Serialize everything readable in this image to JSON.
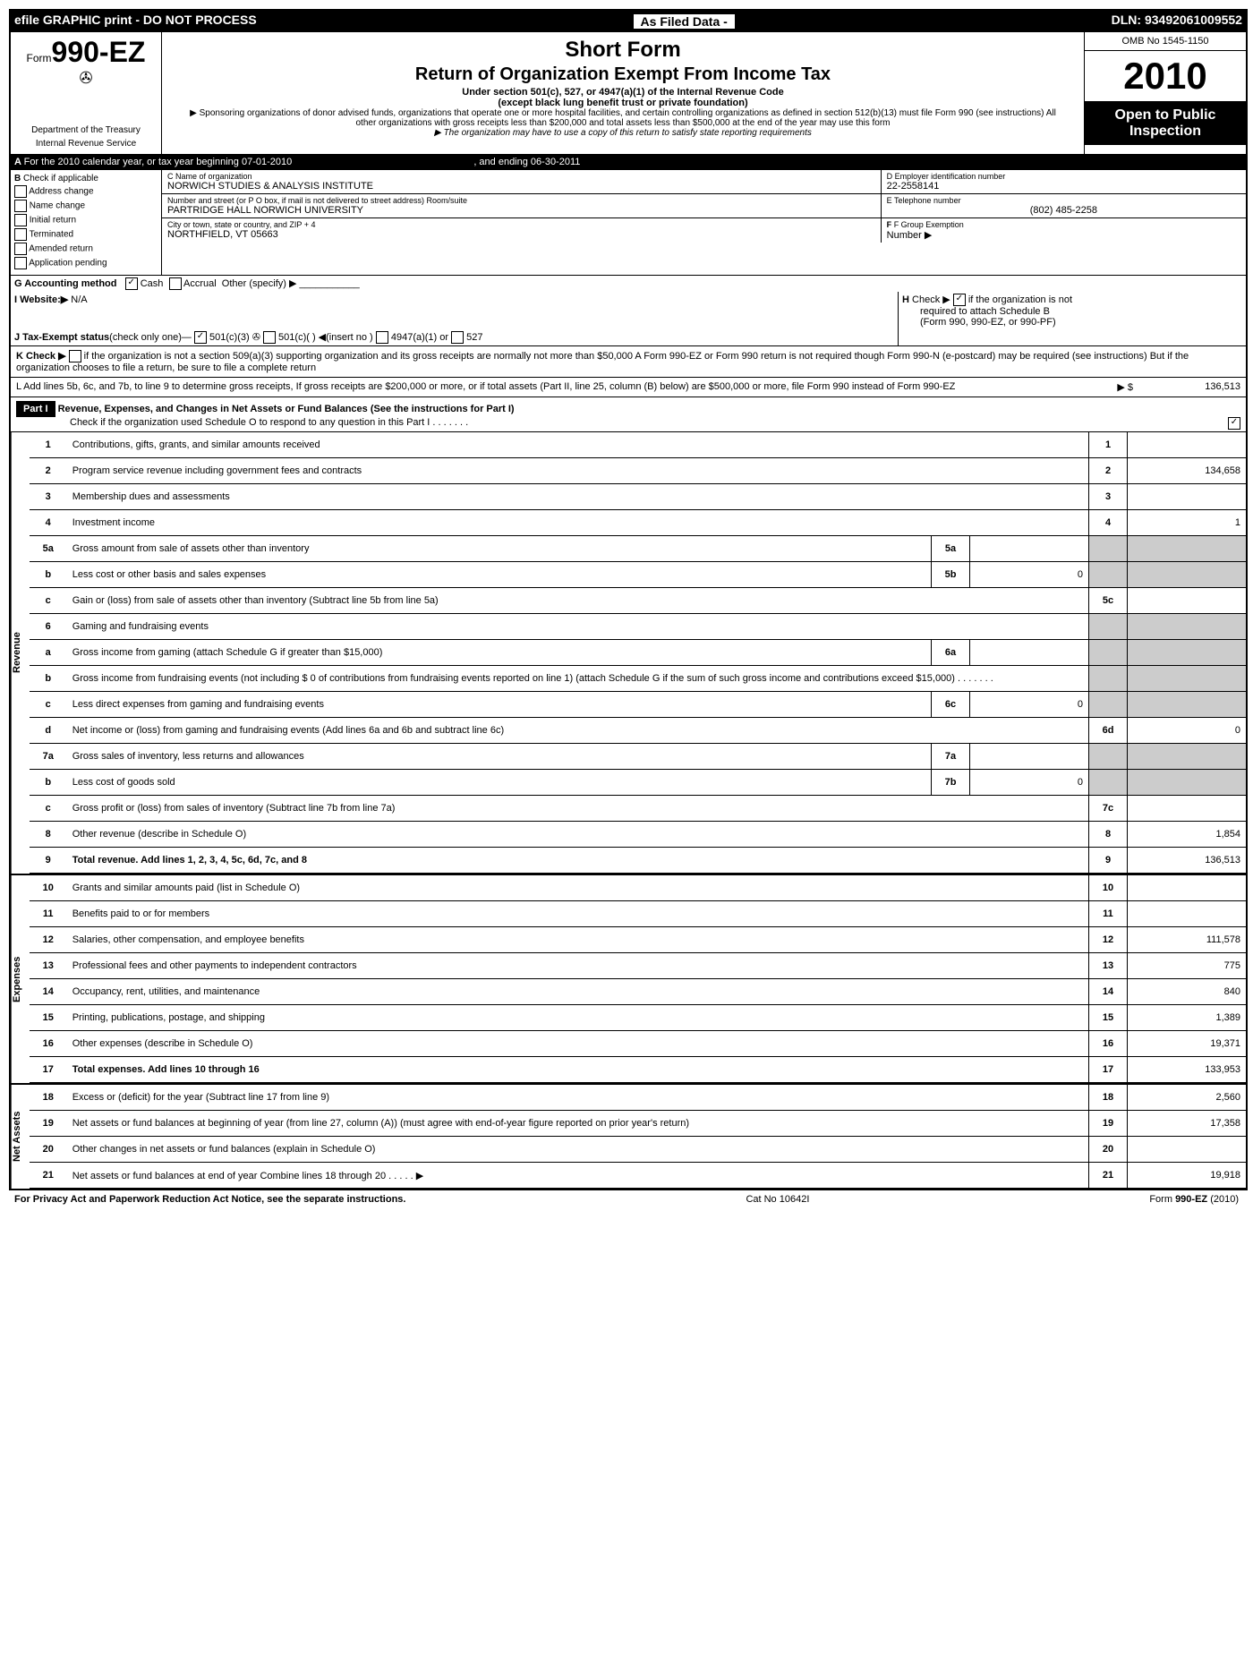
{
  "header": {
    "left": "efile GRAPHIC print - DO NOT PROCESS",
    "center": "As Filed Data -",
    "dln": "DLN: 93492061009552"
  },
  "title": {
    "form_prefix": "Form",
    "form_no": "990-EZ",
    "short_form": "Short Form",
    "main": "Return of Organization Exempt From Income Tax",
    "sub1": "Under section 501(c), 527, or 4947(a)(1) of the Internal Revenue Code",
    "sub2": "(except black lung benefit trust or private foundation)",
    "sponsor": "▶ Sponsoring organizations of donor advised funds, organizations that operate one or more hospital facilities, and certain controlling organizations as defined in section 512(b)(13) must file Form 990 (see instructions) All other organizations with gross receipts less than $200,000 and total assets less than $500,000 at the end of the year may use this form",
    "state_copy": "▶ The organization may have to use a copy of this return to satisfy state reporting requirements",
    "omb": "OMB No 1545-1150",
    "year": "2010",
    "open": "Open to Public",
    "inspection": "Inspection",
    "dept": "Department of the Treasury",
    "irs": "Internal Revenue Service"
  },
  "sectionA": {
    "text": "For the 2010 calendar year, or tax year beginning 07-01-2010",
    "ending": ", and ending 06-30-2011"
  },
  "sectionB": {
    "label": "B",
    "check_label": "Check if applicable",
    "options": [
      "Address change",
      "Name change",
      "Initial return",
      "Terminated",
      "Amended return",
      "Application pending"
    ]
  },
  "sectionC": {
    "label": "C Name of organization",
    "name": "NORWICH STUDIES & ANALYSIS INSTITUTE",
    "addr_label": "Number and street (or P O box, if mail is not delivered to street address) Room/suite",
    "addr": "PARTRIDGE HALL NORWICH UNIVERSITY",
    "city_label": "City or town, state or country, and ZIP + 4",
    "city": "NORTHFIELD, VT 05663"
  },
  "sectionD": {
    "label": "D Employer identification number",
    "ein": "22-2558141"
  },
  "sectionE": {
    "label": "E Telephone number",
    "phone": "(802) 485-2258"
  },
  "sectionF": {
    "label": "F Group Exemption",
    "sub": "Number ▶"
  },
  "sectionG": {
    "label": "G Accounting method",
    "cash": "Cash",
    "accrual": "Accrual",
    "other": "Other (specify) ▶"
  },
  "sectionI": {
    "label": "I Website:▶",
    "val": "N/A"
  },
  "sectionH": {
    "text": "Check ▶",
    "not": "if the organization is not",
    "sub": "required to attach Schedule B",
    "sub2": "(Form 990, 990-EZ, or 990-PF)"
  },
  "sectionJ": {
    "label": "J Tax-Exempt status",
    "text": "(check only one)—",
    "opt1": "501(c)(3)",
    "opt2": "501(c)( )",
    "insert": "◀(insert no )",
    "opt3": "4947(a)(1) or",
    "opt4": "527"
  },
  "sectionK": {
    "text": "K Check ▶",
    "body": "if the organization is not a section 509(a)(3) supporting organization and its gross receipts are normally not more than $50,000  A Form 990-EZ or Form 990 return is not required though Form 990-N (e-postcard) may be required (see instructions) But if the organization chooses to file a return, be sure to file a complete return"
  },
  "sectionL": {
    "text": "L Add lines 5b, 6c, and 7b, to line 9 to determine gross receipts, If gross receipts are $200,000 or more, or if total assets (Part II, line 25, column (B) below) are $500,000 or more, file Form 990 instead of Form 990-EZ",
    "arrow": "▶ $",
    "val": "136,513"
  },
  "part1": {
    "label": "Part I",
    "title": "Revenue, Expenses, and Changes in Net Assets or Fund Balances (See the instructions for Part I)",
    "check": "Check if the organization used Schedule O to respond to any question in this Part I   .   .   .   .   .   .   ."
  },
  "vert": {
    "revenue": "Revenue",
    "expenses": "Expenses",
    "netassets": "Net Assets"
  },
  "lines": [
    {
      "no": "1",
      "desc": "Contributions, gifts, grants, and similar amounts received",
      "val": ""
    },
    {
      "no": "2",
      "desc": "Program service revenue including government fees and contracts",
      "val": "134,658"
    },
    {
      "no": "3",
      "desc": "Membership dues and assessments",
      "val": ""
    },
    {
      "no": "4",
      "desc": "Investment income",
      "val": "1"
    },
    {
      "no": "5a",
      "desc": "Gross amount from sale of assets other than inventory",
      "sub": "5a",
      "subval": ""
    },
    {
      "no": "b",
      "desc": "Less  cost or other basis and sales expenses",
      "sub": "5b",
      "subval": "0"
    },
    {
      "no": "c",
      "desc": "Gain or (loss) from sale of assets other than inventory (Subtract line 5b from line 5a)",
      "rn": "5c",
      "val": ""
    },
    {
      "no": "6",
      "desc": "Gaming and fundraising events"
    },
    {
      "no": "a",
      "desc": "Gross income from gaming (attach Schedule G if greater than $15,000)",
      "sub": "6a",
      "subval": ""
    },
    {
      "no": "b",
      "desc": "Gross income from fundraising events (not including $ 0 of contributions from fundraising events reported on line 1) (attach Schedule G if the sum of such gross income and contributions exceed $15,000)   .   .   .   .   .   .   ."
    },
    {
      "no": "c",
      "desc": "Less  direct expenses from gaming and fundraising events",
      "sub": "6c",
      "subval": "0"
    },
    {
      "no": "d",
      "desc": "Net income or (loss) from gaming and fundraising events (Add lines 6a and 6b and subtract line 6c)",
      "rn": "6d",
      "val": "0"
    },
    {
      "no": "7a",
      "desc": "Gross sales of inventory, less returns and allowances",
      "sub": "7a",
      "subval": ""
    },
    {
      "no": "b",
      "desc": "Less  cost of goods sold",
      "sub": "7b",
      "subval": "0"
    },
    {
      "no": "c",
      "desc": "Gross profit or (loss) from sales of inventory (Subtract line 7b from line 7a)",
      "rn": "7c",
      "val": ""
    },
    {
      "no": "8",
      "desc": "Other revenue (describe in Schedule O)",
      "rn": "8",
      "val": "1,854"
    },
    {
      "no": "9",
      "desc": "Total revenue. Add lines 1, 2, 3, 4, 5c, 6d, 7c, and 8",
      "rn": "9",
      "val": "136,513",
      "bold": true
    }
  ],
  "expense_lines": [
    {
      "no": "10",
      "desc": "Grants and similar amounts paid (list in Schedule O)",
      "val": ""
    },
    {
      "no": "11",
      "desc": "Benefits paid to or for members",
      "val": ""
    },
    {
      "no": "12",
      "desc": "Salaries, other compensation, and employee benefits",
      "val": "111,578"
    },
    {
      "no": "13",
      "desc": "Professional fees and other payments to independent contractors",
      "val": "775"
    },
    {
      "no": "14",
      "desc": "Occupancy, rent, utilities, and maintenance",
      "val": "840"
    },
    {
      "no": "15",
      "desc": "Printing, publications, postage, and shipping",
      "val": "1,389"
    },
    {
      "no": "16",
      "desc": "Other expenses (describe in Schedule O)",
      "val": "19,371"
    },
    {
      "no": "17",
      "desc": "Total expenses. Add lines 10 through 16",
      "val": "133,953",
      "bold": true
    }
  ],
  "net_lines": [
    {
      "no": "18",
      "desc": "Excess or (deficit) for the year (Subtract line 17 from line 9)",
      "val": "2,560"
    },
    {
      "no": "19",
      "desc": "Net assets or fund balances at beginning of year (from line 27, column (A)) (must agree with end-of-year figure reported on prior year's return)",
      "val": "17,358"
    },
    {
      "no": "20",
      "desc": "Other changes in net assets or fund balances (explain in Schedule O)",
      "val": ""
    },
    {
      "no": "21",
      "desc": "Net assets or fund balances at end of year  Combine lines 18 through 20   .   .   .   .   .  ▶",
      "val": "19,918"
    }
  ],
  "footer": {
    "privacy": "For Privacy Act and Paperwork Reduction Act Notice, see the separate instructions.",
    "cat": "Cat No 10642I",
    "form": "Form 990-EZ (2010)"
  }
}
